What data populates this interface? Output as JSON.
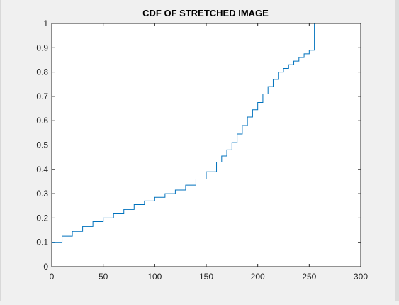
{
  "colors": {
    "figure_bg": "#f0f0f0",
    "axes_bg": "#ffffff",
    "axis": "#262626",
    "line": "#0072bd"
  },
  "chart_data": {
    "type": "line",
    "title": "CDF OF STRETCHED IMAGE",
    "xlabel": "",
    "ylabel": "",
    "xlim": [
      0,
      300
    ],
    "ylim": [
      0,
      1
    ],
    "xticks": [
      0,
      50,
      100,
      150,
      200,
      250,
      300
    ],
    "yticks": [
      0,
      0.1,
      0.2,
      0.3,
      0.4,
      0.5,
      0.6,
      0.7,
      0.8,
      0.9,
      1
    ],
    "xtick_labels": [
      "0",
      "50",
      "100",
      "150",
      "200",
      "250",
      "300"
    ],
    "ytick_labels": [
      "0",
      "0.1",
      "0.2",
      "0.3",
      "0.4",
      "0.5",
      "0.6",
      "0.7",
      "0.8",
      "0.9",
      "1"
    ],
    "grid": false,
    "legend": "none",
    "series": [
      {
        "style": "stairs",
        "x": [
          0,
          10,
          20,
          30,
          40,
          50,
          60,
          70,
          80,
          90,
          100,
          110,
          120,
          130,
          140,
          150,
          160,
          165,
          170,
          175,
          180,
          185,
          190,
          195,
          200,
          205,
          210,
          215,
          220,
          225,
          230,
          235,
          240,
          245,
          250,
          254,
          255,
          256
        ],
        "y": [
          0.1,
          0.125,
          0.145,
          0.165,
          0.185,
          0.2,
          0.22,
          0.235,
          0.255,
          0.27,
          0.285,
          0.3,
          0.315,
          0.335,
          0.36,
          0.39,
          0.43,
          0.455,
          0.48,
          0.51,
          0.545,
          0.58,
          0.615,
          0.645,
          0.675,
          0.71,
          0.74,
          0.77,
          0.8,
          0.815,
          0.83,
          0.845,
          0.86,
          0.875,
          0.89,
          0.89,
          1.0,
          1.0
        ]
      }
    ]
  }
}
